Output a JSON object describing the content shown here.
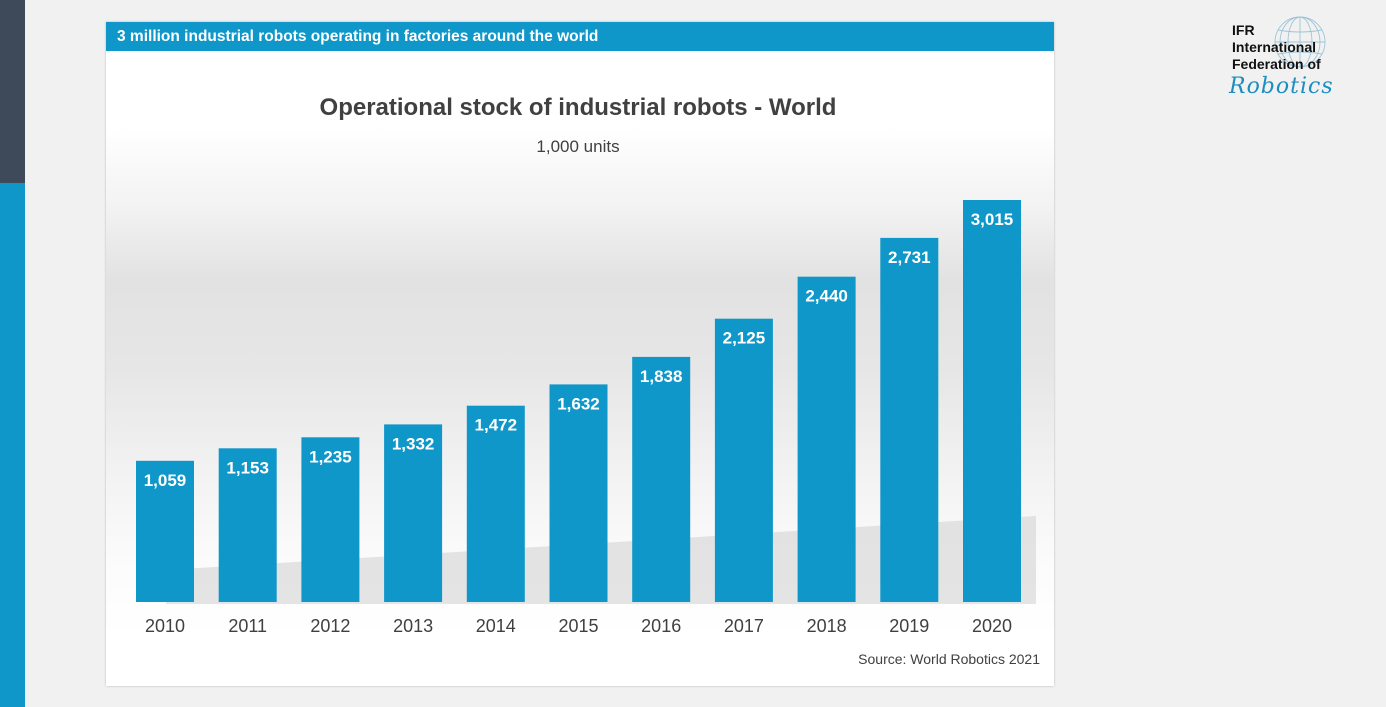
{
  "header": {
    "text": "3 million industrial robots operating in factories around the world"
  },
  "logo": {
    "line1": "IFR",
    "line2": "International",
    "line3": "Federation of",
    "script": "Robotics"
  },
  "colors": {
    "bar": "#0f97c9",
    "header": "#0f97c9",
    "sidebar_dark": "#3e4a5a"
  },
  "chart_data": {
    "type": "bar",
    "title": "Operational stock of industrial robots - World",
    "subtitle": "1,000 units",
    "source": "Source: World Robotics 2021",
    "categories": [
      "2010",
      "2011",
      "2012",
      "2013",
      "2014",
      "2015",
      "2016",
      "2017",
      "2018",
      "2019",
      "2020"
    ],
    "values": [
      1059,
      1153,
      1235,
      1332,
      1472,
      1632,
      1838,
      2125,
      2440,
      2731,
      3015
    ],
    "value_labels": [
      "1,059",
      "1,153",
      "1,235",
      "1,332",
      "1,472",
      "1,632",
      "1,838",
      "2,125",
      "2,440",
      "2,731",
      "3,015"
    ],
    "xlabel": "",
    "ylabel": "",
    "ylim": [
      0,
      3015
    ],
    "grid": false,
    "legend": "none"
  }
}
